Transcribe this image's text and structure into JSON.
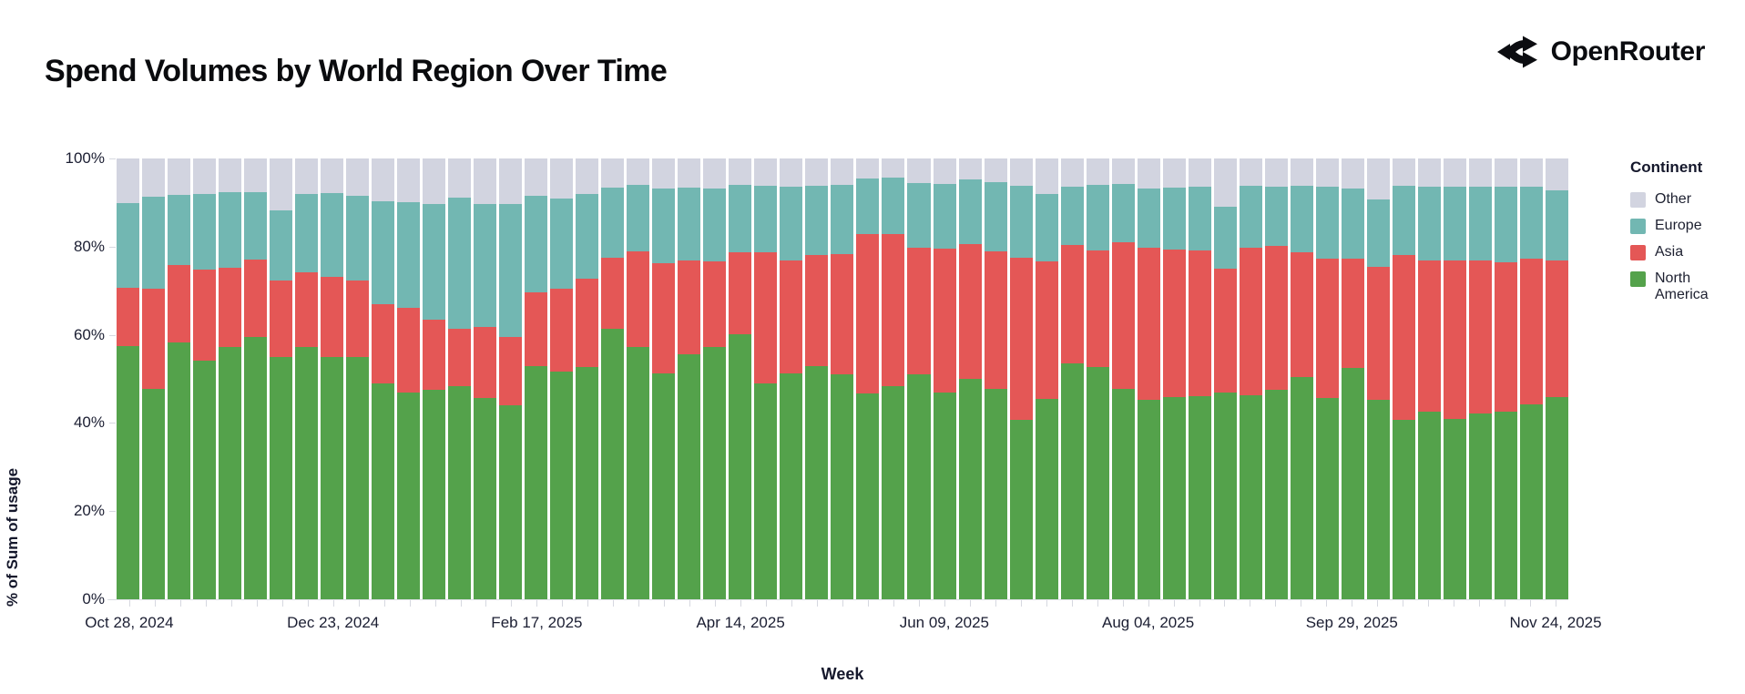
{
  "page": {
    "title": "Spend Volumes by World Region Over Time"
  },
  "brand": {
    "name": "OpenRouter"
  },
  "chart_data": {
    "type": "bar",
    "stacked": true,
    "normalized": "percent_of_total",
    "title": "Spend Volumes by World Region Over Time",
    "xlabel": "Week",
    "ylabel": "% of Sum of usage",
    "ylim": [
      0,
      100
    ],
    "grid": false,
    "y_ticks": [
      "0%",
      "20%",
      "40%",
      "60%",
      "80%",
      "100%"
    ],
    "x_tick_labels": [
      "Oct 28, 2024",
      "Dec 23, 2024",
      "Feb 17, 2025",
      "Apr 14, 2025",
      "Jun 09, 2025",
      "Aug 04, 2025",
      "Sep 29, 2025",
      "Nov 24, 2025"
    ],
    "x_tick_every_n_bars": 8,
    "stack_order_bottom_to_top": [
      "North America",
      "Asia",
      "Europe",
      "Other"
    ],
    "colors": {
      "North America": "#54A24B",
      "Asia": "#E45756",
      "Europe": "#72B7B2",
      "Other": "#D2D4E0"
    },
    "legend": {
      "title": "Continent",
      "position": "right",
      "items": [
        {
          "label": "Other",
          "color": "#D2D4E0"
        },
        {
          "label": "Europe",
          "color": "#72B7B2"
        },
        {
          "label": "Asia",
          "color": "#E45756"
        },
        {
          "label": "North America",
          "color": "#54A24B"
        }
      ]
    },
    "weeks": [
      {
        "week": "Oct 28, 2024",
        "north_america": 57.4,
        "asia": 13.3,
        "europe": 19.1,
        "other": 10.2
      },
      {
        "week": "Nov 04, 2024",
        "north_america": 47.7,
        "asia": 22.8,
        "europe": 20.8,
        "other": 8.7
      },
      {
        "week": "Nov 11, 2024",
        "north_america": 58.3,
        "asia": 17.6,
        "europe": 15.8,
        "other": 8.3
      },
      {
        "week": "Nov 18, 2024",
        "north_america": 54.1,
        "asia": 20.6,
        "europe": 17.3,
        "other": 8.0
      },
      {
        "week": "Nov 25, 2024",
        "north_america": 57.2,
        "asia": 18.1,
        "europe": 17.0,
        "other": 7.7
      },
      {
        "week": "Dec 02, 2024",
        "north_america": 59.5,
        "asia": 17.5,
        "europe": 15.4,
        "other": 7.6
      },
      {
        "week": "Dec 09, 2024",
        "north_america": 54.9,
        "asia": 17.4,
        "europe": 16.0,
        "other": 11.7
      },
      {
        "week": "Dec 16, 2024",
        "north_america": 57.2,
        "asia": 16.9,
        "europe": 17.9,
        "other": 8.0
      },
      {
        "week": "Dec 23, 2024",
        "north_america": 55.0,
        "asia": 18.2,
        "europe": 19.0,
        "other": 7.8
      },
      {
        "week": "Dec 30, 2024",
        "north_america": 55.0,
        "asia": 17.4,
        "europe": 19.1,
        "other": 8.5
      },
      {
        "week": "Jan 06, 2025",
        "north_america": 48.9,
        "asia": 18.1,
        "europe": 23.2,
        "other": 9.8
      },
      {
        "week": "Jan 13, 2025",
        "north_america": 47.0,
        "asia": 19.1,
        "europe": 23.9,
        "other": 10.0
      },
      {
        "week": "Jan 20, 2025",
        "north_america": 47.5,
        "asia": 15.9,
        "europe": 26.3,
        "other": 10.3
      },
      {
        "week": "Jan 27, 2025",
        "north_america": 48.3,
        "asia": 13.0,
        "europe": 29.8,
        "other": 8.9
      },
      {
        "week": "Feb 03, 2025",
        "north_america": 45.6,
        "asia": 16.1,
        "europe": 28.0,
        "other": 10.3
      },
      {
        "week": "Feb 10, 2025",
        "north_america": 44.0,
        "asia": 15.6,
        "europe": 30.1,
        "other": 10.3
      },
      {
        "week": "Feb 17, 2025",
        "north_america": 52.8,
        "asia": 16.8,
        "europe": 21.9,
        "other": 8.5
      },
      {
        "week": "Feb 24, 2025",
        "north_america": 51.7,
        "asia": 18.8,
        "europe": 20.4,
        "other": 9.1
      },
      {
        "week": "Mar 03, 2025",
        "north_america": 52.6,
        "asia": 20.2,
        "europe": 19.1,
        "other": 8.1
      },
      {
        "week": "Mar 10, 2025",
        "north_america": 61.3,
        "asia": 16.2,
        "europe": 15.9,
        "other": 6.6
      },
      {
        "week": "Mar 17, 2025",
        "north_america": 57.2,
        "asia": 21.8,
        "europe": 15.0,
        "other": 6.0
      },
      {
        "week": "Mar 24, 2025",
        "north_america": 51.3,
        "asia": 24.9,
        "europe": 17.0,
        "other": 6.8
      },
      {
        "week": "Mar 31, 2025",
        "north_america": 55.5,
        "asia": 21.3,
        "europe": 16.6,
        "other": 6.6
      },
      {
        "week": "Apr 07, 2025",
        "north_america": 57.2,
        "asia": 19.4,
        "europe": 16.6,
        "other": 6.8
      },
      {
        "week": "Apr 14, 2025",
        "north_america": 60.2,
        "asia": 18.6,
        "europe": 15.3,
        "other": 5.9
      },
      {
        "week": "Apr 21, 2025",
        "north_america": 48.9,
        "asia": 29.8,
        "europe": 15.0,
        "other": 6.3
      },
      {
        "week": "Apr 28, 2025",
        "north_america": 51.3,
        "asia": 25.5,
        "europe": 16.8,
        "other": 6.4
      },
      {
        "week": "May 05, 2025",
        "north_america": 52.8,
        "asia": 25.3,
        "europe": 15.6,
        "other": 6.3
      },
      {
        "week": "May 12, 2025",
        "north_america": 51.0,
        "asia": 27.4,
        "europe": 15.7,
        "other": 5.9
      },
      {
        "week": "May 19, 2025",
        "north_america": 46.6,
        "asia": 36.2,
        "europe": 12.7,
        "other": 4.5
      },
      {
        "week": "May 26, 2025",
        "north_america": 48.3,
        "asia": 34.5,
        "europe": 12.8,
        "other": 4.4
      },
      {
        "week": "Jun 02, 2025",
        "north_america": 51.0,
        "asia": 28.8,
        "europe": 14.7,
        "other": 5.5
      },
      {
        "week": "Jun 09, 2025",
        "north_america": 47.0,
        "asia": 32.6,
        "europe": 14.7,
        "other": 5.7
      },
      {
        "week": "Jun 16, 2025",
        "north_america": 50.0,
        "asia": 30.5,
        "europe": 14.7,
        "other": 4.8
      },
      {
        "week": "Jun 23, 2025",
        "north_america": 47.7,
        "asia": 31.3,
        "europe": 15.6,
        "other": 5.4
      },
      {
        "week": "Jun 30, 2025",
        "north_america": 40.7,
        "asia": 36.7,
        "europe": 16.3,
        "other": 6.3
      },
      {
        "week": "Jul 07, 2025",
        "north_america": 45.5,
        "asia": 31.1,
        "europe": 15.4,
        "other": 8.0
      },
      {
        "week": "Jul 14, 2025",
        "north_america": 53.6,
        "asia": 26.7,
        "europe": 13.2,
        "other": 6.5
      },
      {
        "week": "Jul 21, 2025",
        "north_america": 52.6,
        "asia": 26.6,
        "europe": 14.8,
        "other": 6.0
      },
      {
        "week": "Jul 28, 2025",
        "north_america": 47.7,
        "asia": 33.2,
        "europe": 13.4,
        "other": 5.7
      },
      {
        "week": "Aug 04, 2025",
        "north_america": 45.2,
        "asia": 34.6,
        "europe": 13.4,
        "other": 6.8
      },
      {
        "week": "Aug 11, 2025",
        "north_america": 45.9,
        "asia": 33.5,
        "europe": 14.0,
        "other": 6.6
      },
      {
        "week": "Aug 18, 2025",
        "north_america": 46.0,
        "asia": 33.2,
        "europe": 14.4,
        "other": 6.4
      },
      {
        "week": "Aug 25, 2025",
        "north_america": 46.8,
        "asia": 28.3,
        "europe": 13.9,
        "other": 11.0
      },
      {
        "week": "Sep 01, 2025",
        "north_america": 46.2,
        "asia": 33.6,
        "europe": 13.9,
        "other": 6.3
      },
      {
        "week": "Sep 08, 2025",
        "north_america": 47.5,
        "asia": 32.7,
        "europe": 13.4,
        "other": 6.4
      },
      {
        "week": "Sep 15, 2025",
        "north_america": 50.5,
        "asia": 28.3,
        "europe": 14.9,
        "other": 6.3
      },
      {
        "week": "Sep 22, 2025",
        "north_america": 45.7,
        "asia": 31.5,
        "europe": 16.3,
        "other": 6.5
      },
      {
        "week": "Sep 29, 2025",
        "north_america": 52.5,
        "asia": 24.8,
        "europe": 15.8,
        "other": 6.9
      },
      {
        "week": "Oct 06, 2025",
        "north_america": 45.2,
        "asia": 30.2,
        "europe": 15.3,
        "other": 9.3
      },
      {
        "week": "Oct 13, 2025",
        "north_america": 40.7,
        "asia": 37.4,
        "europe": 15.6,
        "other": 6.3
      },
      {
        "week": "Oct 20, 2025",
        "north_america": 42.5,
        "asia": 34.3,
        "europe": 16.8,
        "other": 6.4
      },
      {
        "week": "Oct 27, 2025",
        "north_america": 41.0,
        "asia": 35.9,
        "europe": 16.7,
        "other": 6.4
      },
      {
        "week": "Nov 03, 2025",
        "north_america": 42.1,
        "asia": 34.7,
        "europe": 16.8,
        "other": 6.4
      },
      {
        "week": "Nov 10, 2025",
        "north_america": 42.5,
        "asia": 33.9,
        "europe": 17.2,
        "other": 6.4
      },
      {
        "week": "Nov 17, 2025",
        "north_america": 44.3,
        "asia": 32.9,
        "europe": 16.4,
        "other": 6.4
      },
      {
        "week": "Nov 24, 2025",
        "north_america": 45.9,
        "asia": 31.0,
        "europe": 15.9,
        "other": 7.2
      }
    ]
  }
}
